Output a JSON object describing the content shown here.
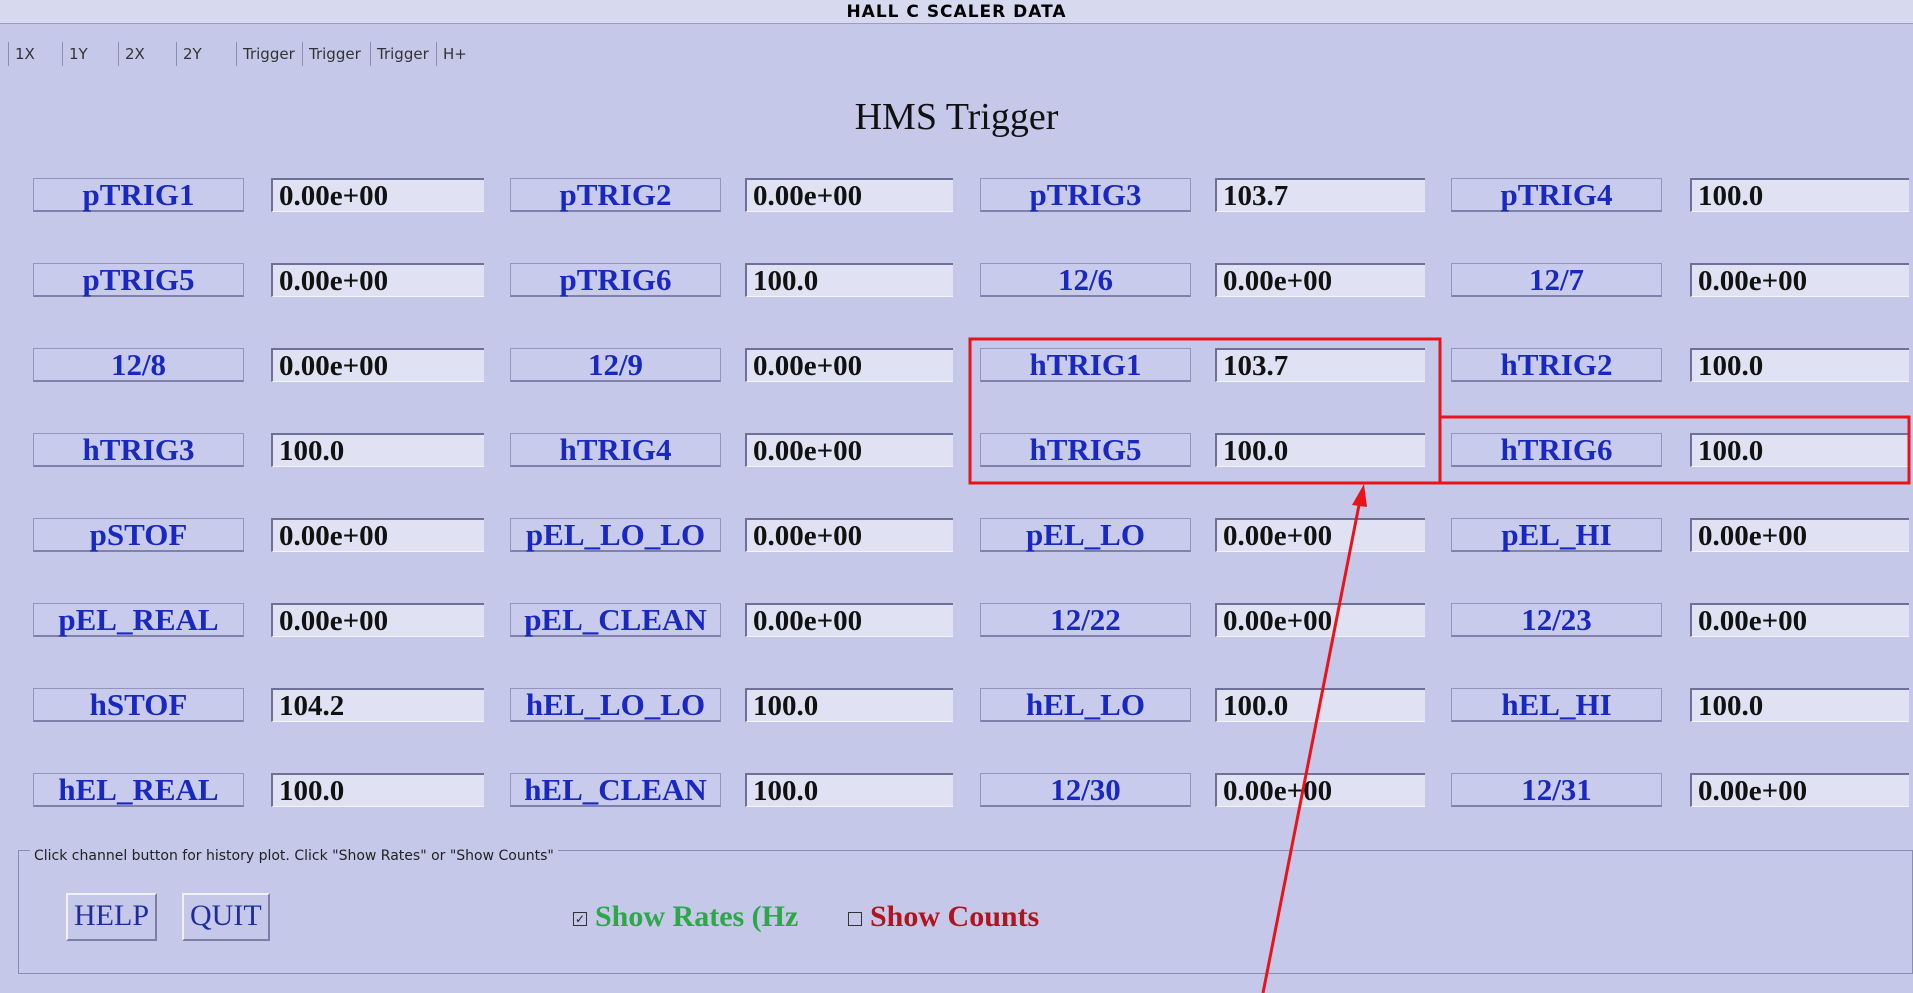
{
  "window": {
    "title": "HALL  C  SCALER  DATA"
  },
  "tabs": [
    "1X",
    "1Y",
    "2X",
    "2Y",
    "Trigger",
    "Trigger",
    "Trigger",
    "H+"
  ],
  "heading": "HMS Trigger",
  "grid": {
    "rows": [
      [
        {
          "label": "pTRIG1",
          "value": "0.00e+00"
        },
        {
          "label": "pTRIG2",
          "value": "0.00e+00"
        },
        {
          "label": "pTRIG3",
          "value": "103.7"
        },
        {
          "label": "pTRIG4",
          "value": "100.0"
        }
      ],
      [
        {
          "label": "pTRIG5",
          "value": "0.00e+00"
        },
        {
          "label": "pTRIG6",
          "value": "100.0"
        },
        {
          "label": "12/6",
          "value": "0.00e+00"
        },
        {
          "label": "12/7",
          "value": "0.00e+00"
        }
      ],
      [
        {
          "label": "12/8",
          "value": "0.00e+00"
        },
        {
          "label": "12/9",
          "value": "0.00e+00"
        },
        {
          "label": "hTRIG1",
          "value": "103.7"
        },
        {
          "label": "hTRIG2",
          "value": "100.0"
        }
      ],
      [
        {
          "label": "hTRIG3",
          "value": "100.0"
        },
        {
          "label": "hTRIG4",
          "value": "0.00e+00"
        },
        {
          "label": "hTRIG5",
          "value": "100.0"
        },
        {
          "label": "hTRIG6",
          "value": "100.0"
        }
      ],
      [
        {
          "label": "pSTOF",
          "value": "0.00e+00"
        },
        {
          "label": "pEL_LO_LO",
          "value": "0.00e+00"
        },
        {
          "label": "pEL_LO",
          "value": "0.00e+00"
        },
        {
          "label": "pEL_HI",
          "value": "0.00e+00"
        }
      ],
      [
        {
          "label": "pEL_REAL",
          "value": "0.00e+00"
        },
        {
          "label": "pEL_CLEAN",
          "value": "0.00e+00"
        },
        {
          "label": "12/22",
          "value": "0.00e+00"
        },
        {
          "label": "12/23",
          "value": "0.00e+00"
        }
      ],
      [
        {
          "label": "hSTOF",
          "value": "104.2"
        },
        {
          "label": "hEL_LO_LO",
          "value": "100.0"
        },
        {
          "label": "hEL_LO",
          "value": "100.0"
        },
        {
          "label": "hEL_HI",
          "value": "100.0"
        }
      ],
      [
        {
          "label": "hEL_REAL",
          "value": "100.0"
        },
        {
          "label": "hEL_CLEAN",
          "value": "100.0"
        },
        {
          "label": "12/30",
          "value": "0.00e+00"
        },
        {
          "label": "12/31",
          "value": "0.00e+00"
        }
      ]
    ]
  },
  "footer": {
    "group_label": "Click channel button for history plot.  Click \"Show Rates\" or \"Show Counts\"",
    "buttons": [
      "HELP",
      "QUIT"
    ],
    "checkboxes": [
      {
        "label": "Show Rates (Hz",
        "checked": true
      },
      {
        "label": "Show Counts",
        "checked": false
      }
    ]
  }
}
